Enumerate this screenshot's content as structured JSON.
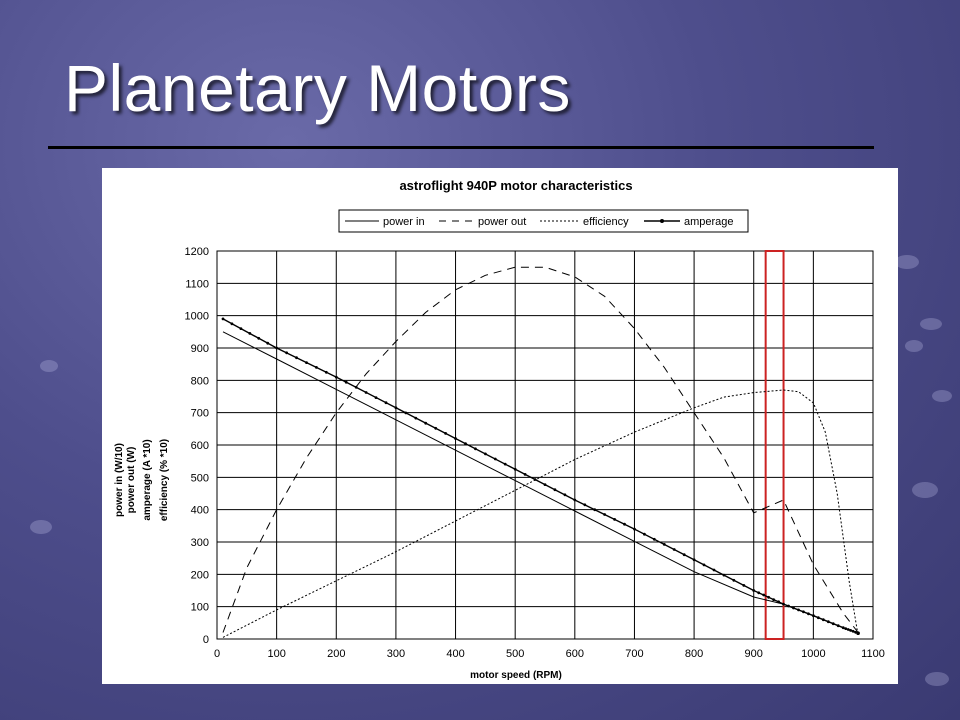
{
  "slide": {
    "title": "Planetary Motors"
  },
  "chart_data": {
    "type": "line",
    "title": "astroflight 940P motor characteristics",
    "xlabel": "motor speed (RPM)",
    "ylabel_lines": [
      "power in (W/10)",
      "power out (W)",
      "amperage (A *10)",
      "efficiency (% *10)"
    ],
    "xlim": [
      0,
      1100
    ],
    "ylim": [
      0,
      1200
    ],
    "xticks": [
      0,
      100,
      200,
      300,
      400,
      500,
      600,
      700,
      800,
      900,
      1000,
      1100
    ],
    "yticks": [
      0,
      100,
      200,
      300,
      400,
      500,
      600,
      700,
      800,
      900,
      1000,
      1100,
      1200
    ],
    "grid": true,
    "legend_position": "top",
    "highlight_range": {
      "x": [
        920,
        950
      ],
      "color": "#cc2222"
    },
    "series": [
      {
        "name": "power in",
        "style": "solid",
        "x": [
          10,
          100,
          200,
          300,
          400,
          500,
          600,
          700,
          800,
          900,
          950,
          1000,
          1050,
          1075
        ],
        "y": [
          950,
          866,
          772,
          678,
          584,
          490,
          396,
          302,
          208,
          130,
          108,
          72,
          35,
          18
        ]
      },
      {
        "name": "power out",
        "style": "longdash",
        "x": [
          10,
          50,
          100,
          150,
          200,
          250,
          300,
          350,
          400,
          450,
          500,
          550,
          600,
          650,
          700,
          750,
          800,
          850,
          900,
          950,
          1000,
          1050,
          1075
        ],
        "y": [
          20,
          220,
          400,
          560,
          700,
          820,
          920,
          1010,
          1080,
          1125,
          1150,
          1150,
          1120,
          1060,
          960,
          840,
          700,
          560,
          390,
          430,
          230,
          80,
          20
        ]
      },
      {
        "name": "efficiency",
        "style": "shortdash",
        "x": [
          10,
          100,
          200,
          300,
          400,
          500,
          600,
          700,
          800,
          850,
          900,
          950,
          975,
          1000,
          1020,
          1040,
          1060,
          1075
        ],
        "y": [
          5,
          90,
          180,
          270,
          365,
          460,
          555,
          640,
          715,
          748,
          762,
          770,
          765,
          730,
          640,
          450,
          180,
          10
        ]
      },
      {
        "name": "amperage",
        "style": "dotted-marker",
        "x": [
          10,
          100,
          200,
          300,
          400,
          500,
          600,
          700,
          800,
          900,
          950,
          1000,
          1050,
          1075
        ],
        "y": [
          990,
          900,
          810,
          715,
          620,
          525,
          430,
          340,
          245,
          150,
          108,
          72,
          35,
          18
        ]
      }
    ]
  }
}
